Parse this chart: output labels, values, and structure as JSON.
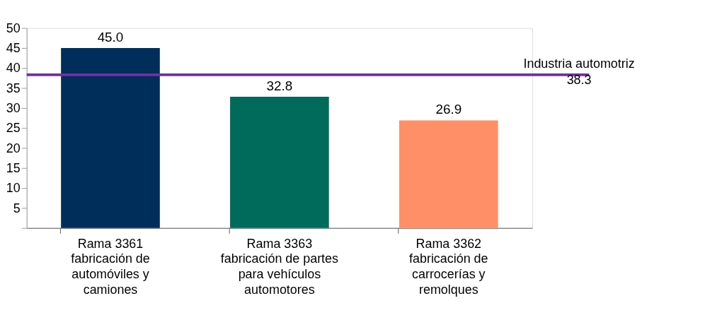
{
  "chart_data": {
    "type": "bar",
    "categories": [
      "Rama 3361\nfabricación de\nautomóviles y\ncamiones",
      "Rama 3363\nfabricación de partes\npara vehículos\nautomotores",
      "Rama 3362\nfabricación de\ncarrocerías y\nremolques"
    ],
    "values": [
      45.0,
      32.8,
      26.9
    ],
    "colors": [
      "#002e5a",
      "#006b5a",
      "#ff8f66"
    ],
    "value_labels": [
      "45.0",
      "32.8",
      "26.9"
    ],
    "ylim": [
      0,
      50
    ],
    "yticks": [
      {
        "value": 0,
        "label": null
      },
      5,
      10,
      15,
      20,
      25,
      30,
      35,
      40,
      45,
      50
    ],
    "ref_lines": [
      {
        "axis": "y",
        "value": 38.3,
        "label": "Industria automotriz\n38.3",
        "color": "#7030a0"
      }
    ],
    "grid": false
  }
}
